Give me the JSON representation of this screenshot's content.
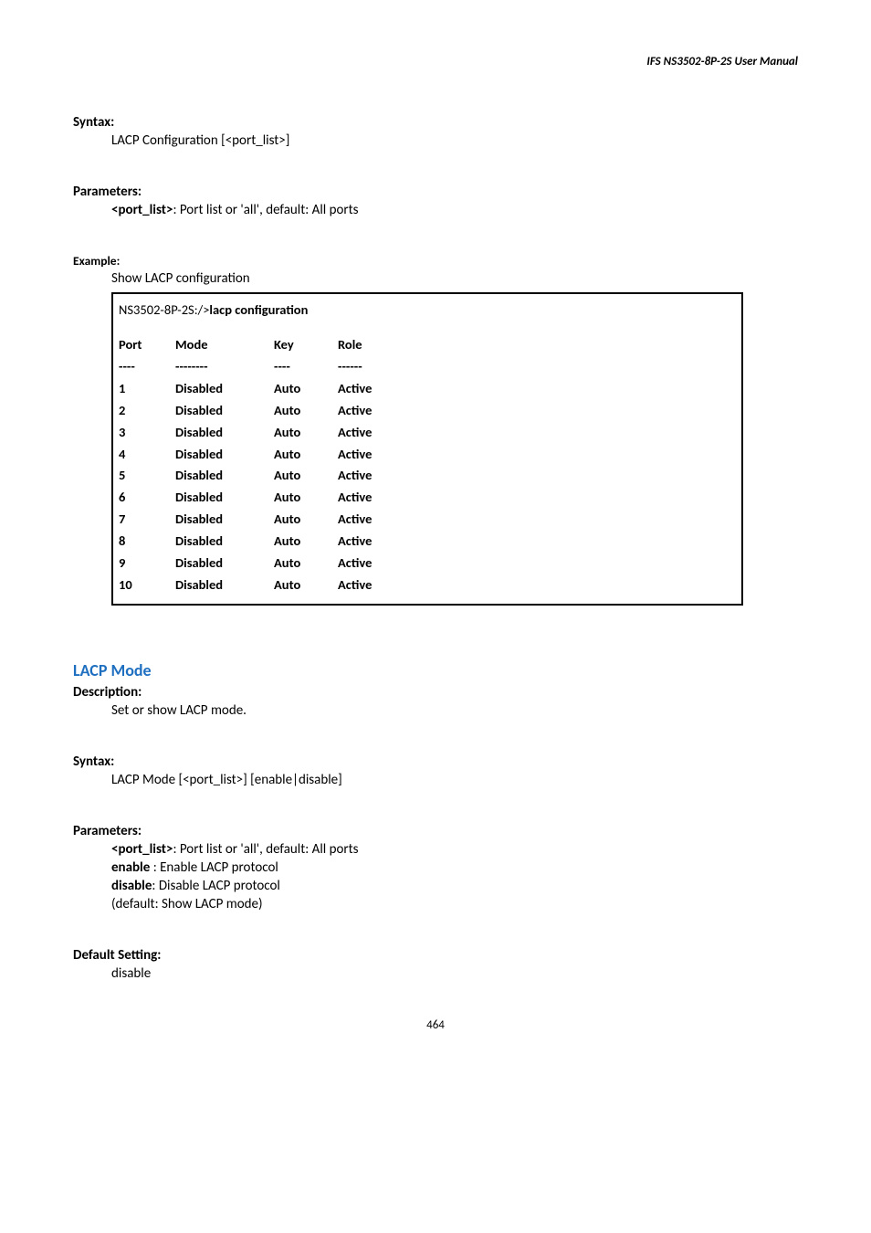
{
  "header": {
    "title": "IFS  NS3502-8P-2S  User  Manual"
  },
  "syntax1": {
    "label": "Syntax:",
    "text": "LACP Configuration [<port_list>]"
  },
  "params1": {
    "label": "Parameters:",
    "p1_bold": "<port_list>",
    "p1_rest": ": Port list or 'all', default: All ports"
  },
  "example": {
    "label": "Example:",
    "desc": "Show LACP configuration",
    "prompt": "NS3502-8P-2S:/>",
    "command": "lacp configuration",
    "headers": {
      "port": "Port",
      "mode": "Mode",
      "key": "Key",
      "role": "Role"
    },
    "div": {
      "port": "----",
      "mode": "--------",
      "key": "----",
      "role": "------"
    },
    "rows": [
      {
        "port": "1",
        "mode": "Disabled",
        "key": "Auto",
        "role": "Active"
      },
      {
        "port": "2",
        "mode": "Disabled",
        "key": "Auto",
        "role": "Active"
      },
      {
        "port": "3",
        "mode": "Disabled",
        "key": "Auto",
        "role": "Active"
      },
      {
        "port": "4",
        "mode": "Disabled",
        "key": "Auto",
        "role": "Active"
      },
      {
        "port": "5",
        "mode": "Disabled",
        "key": "Auto",
        "role": "Active"
      },
      {
        "port": "6",
        "mode": "Disabled",
        "key": "Auto",
        "role": "Active"
      },
      {
        "port": "7",
        "mode": "Disabled",
        "key": "Auto",
        "role": "Active"
      },
      {
        "port": "8",
        "mode": "Disabled",
        "key": "Auto",
        "role": "Active"
      },
      {
        "port": "9",
        "mode": "Disabled",
        "key": "Auto",
        "role": "Active"
      },
      {
        "port": "10",
        "mode": "Disabled",
        "key": "Auto",
        "role": "Active"
      }
    ]
  },
  "heading2": "LACP Mode",
  "desc2": {
    "label": "Description:",
    "text": "Set or show LACP mode."
  },
  "syntax2": {
    "label": "Syntax:",
    "text": "LACP Mode [<port_list>] [enable|disable]"
  },
  "params2": {
    "label": "Parameters:",
    "p1_bold": "<port_list>",
    "p1_rest": ": Port list or 'all', default: All ports",
    "p2_bold": "enable ",
    "p2_rest": ": Enable LACP protocol",
    "p3_bold": "disable",
    "p3_rest": ": Disable LACP protocol",
    "p4": "(default: Show LACP mode)"
  },
  "default2": {
    "label": "Default Setting:",
    "text": "disable"
  },
  "footer": {
    "page": "464"
  }
}
